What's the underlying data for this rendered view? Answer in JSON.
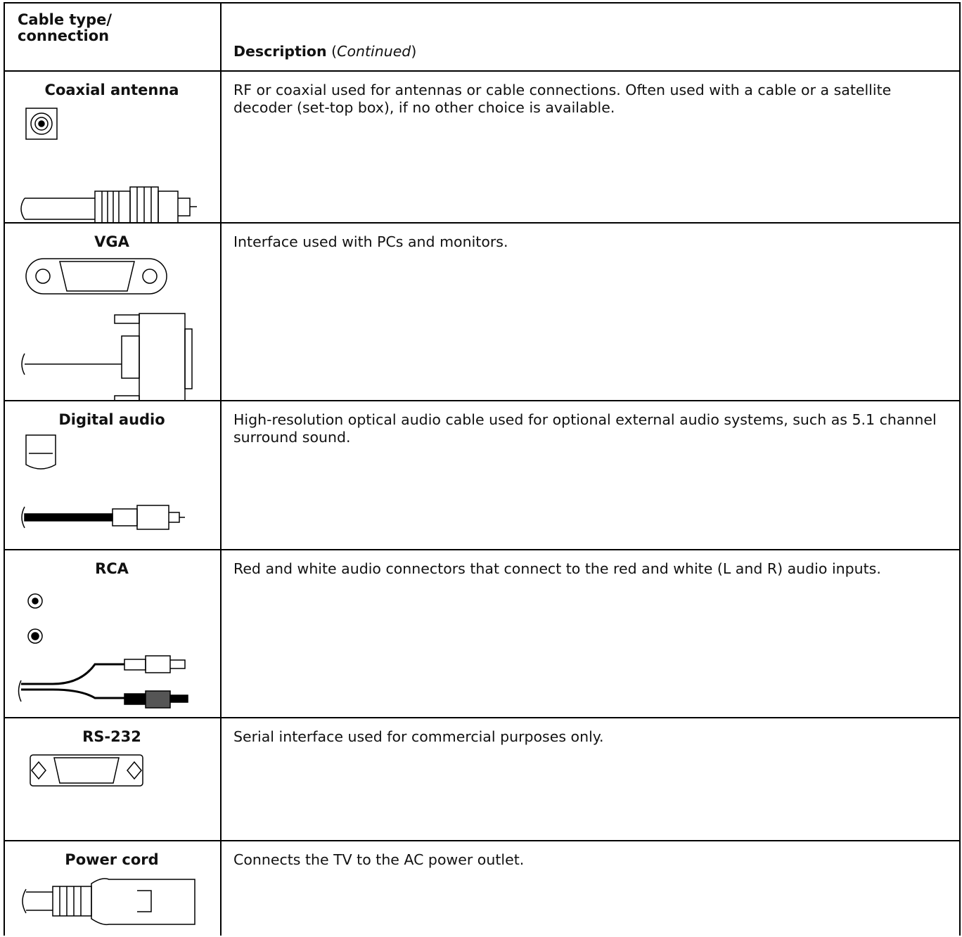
{
  "header": {
    "cable": "Cable type/\nconnection",
    "description": "Description",
    "continued": [
      "(",
      "Continued",
      ")"
    ]
  },
  "rows": [
    {
      "name": "Coaxial antenna",
      "description": "RF or coaxial used for antennas or cable connections. Often used with a cable or a satellite decoder (set-top box), if no other choice is available."
    },
    {
      "name": "VGA",
      "description": "Interface used with PCs and monitors."
    },
    {
      "name": "Digital audio",
      "description": "High-resolution optical audio cable used for optional external audio systems, such as 5.1 channel surround sound."
    },
    {
      "name": "RCA",
      "description": "Red and white audio connectors that connect to the red and white (L and R) audio inputs."
    },
    {
      "name": "RS-232",
      "description": "Serial interface used for commercial purposes only."
    },
    {
      "name": "Power cord",
      "description": "Connects the TV to the AC power outlet."
    }
  ]
}
